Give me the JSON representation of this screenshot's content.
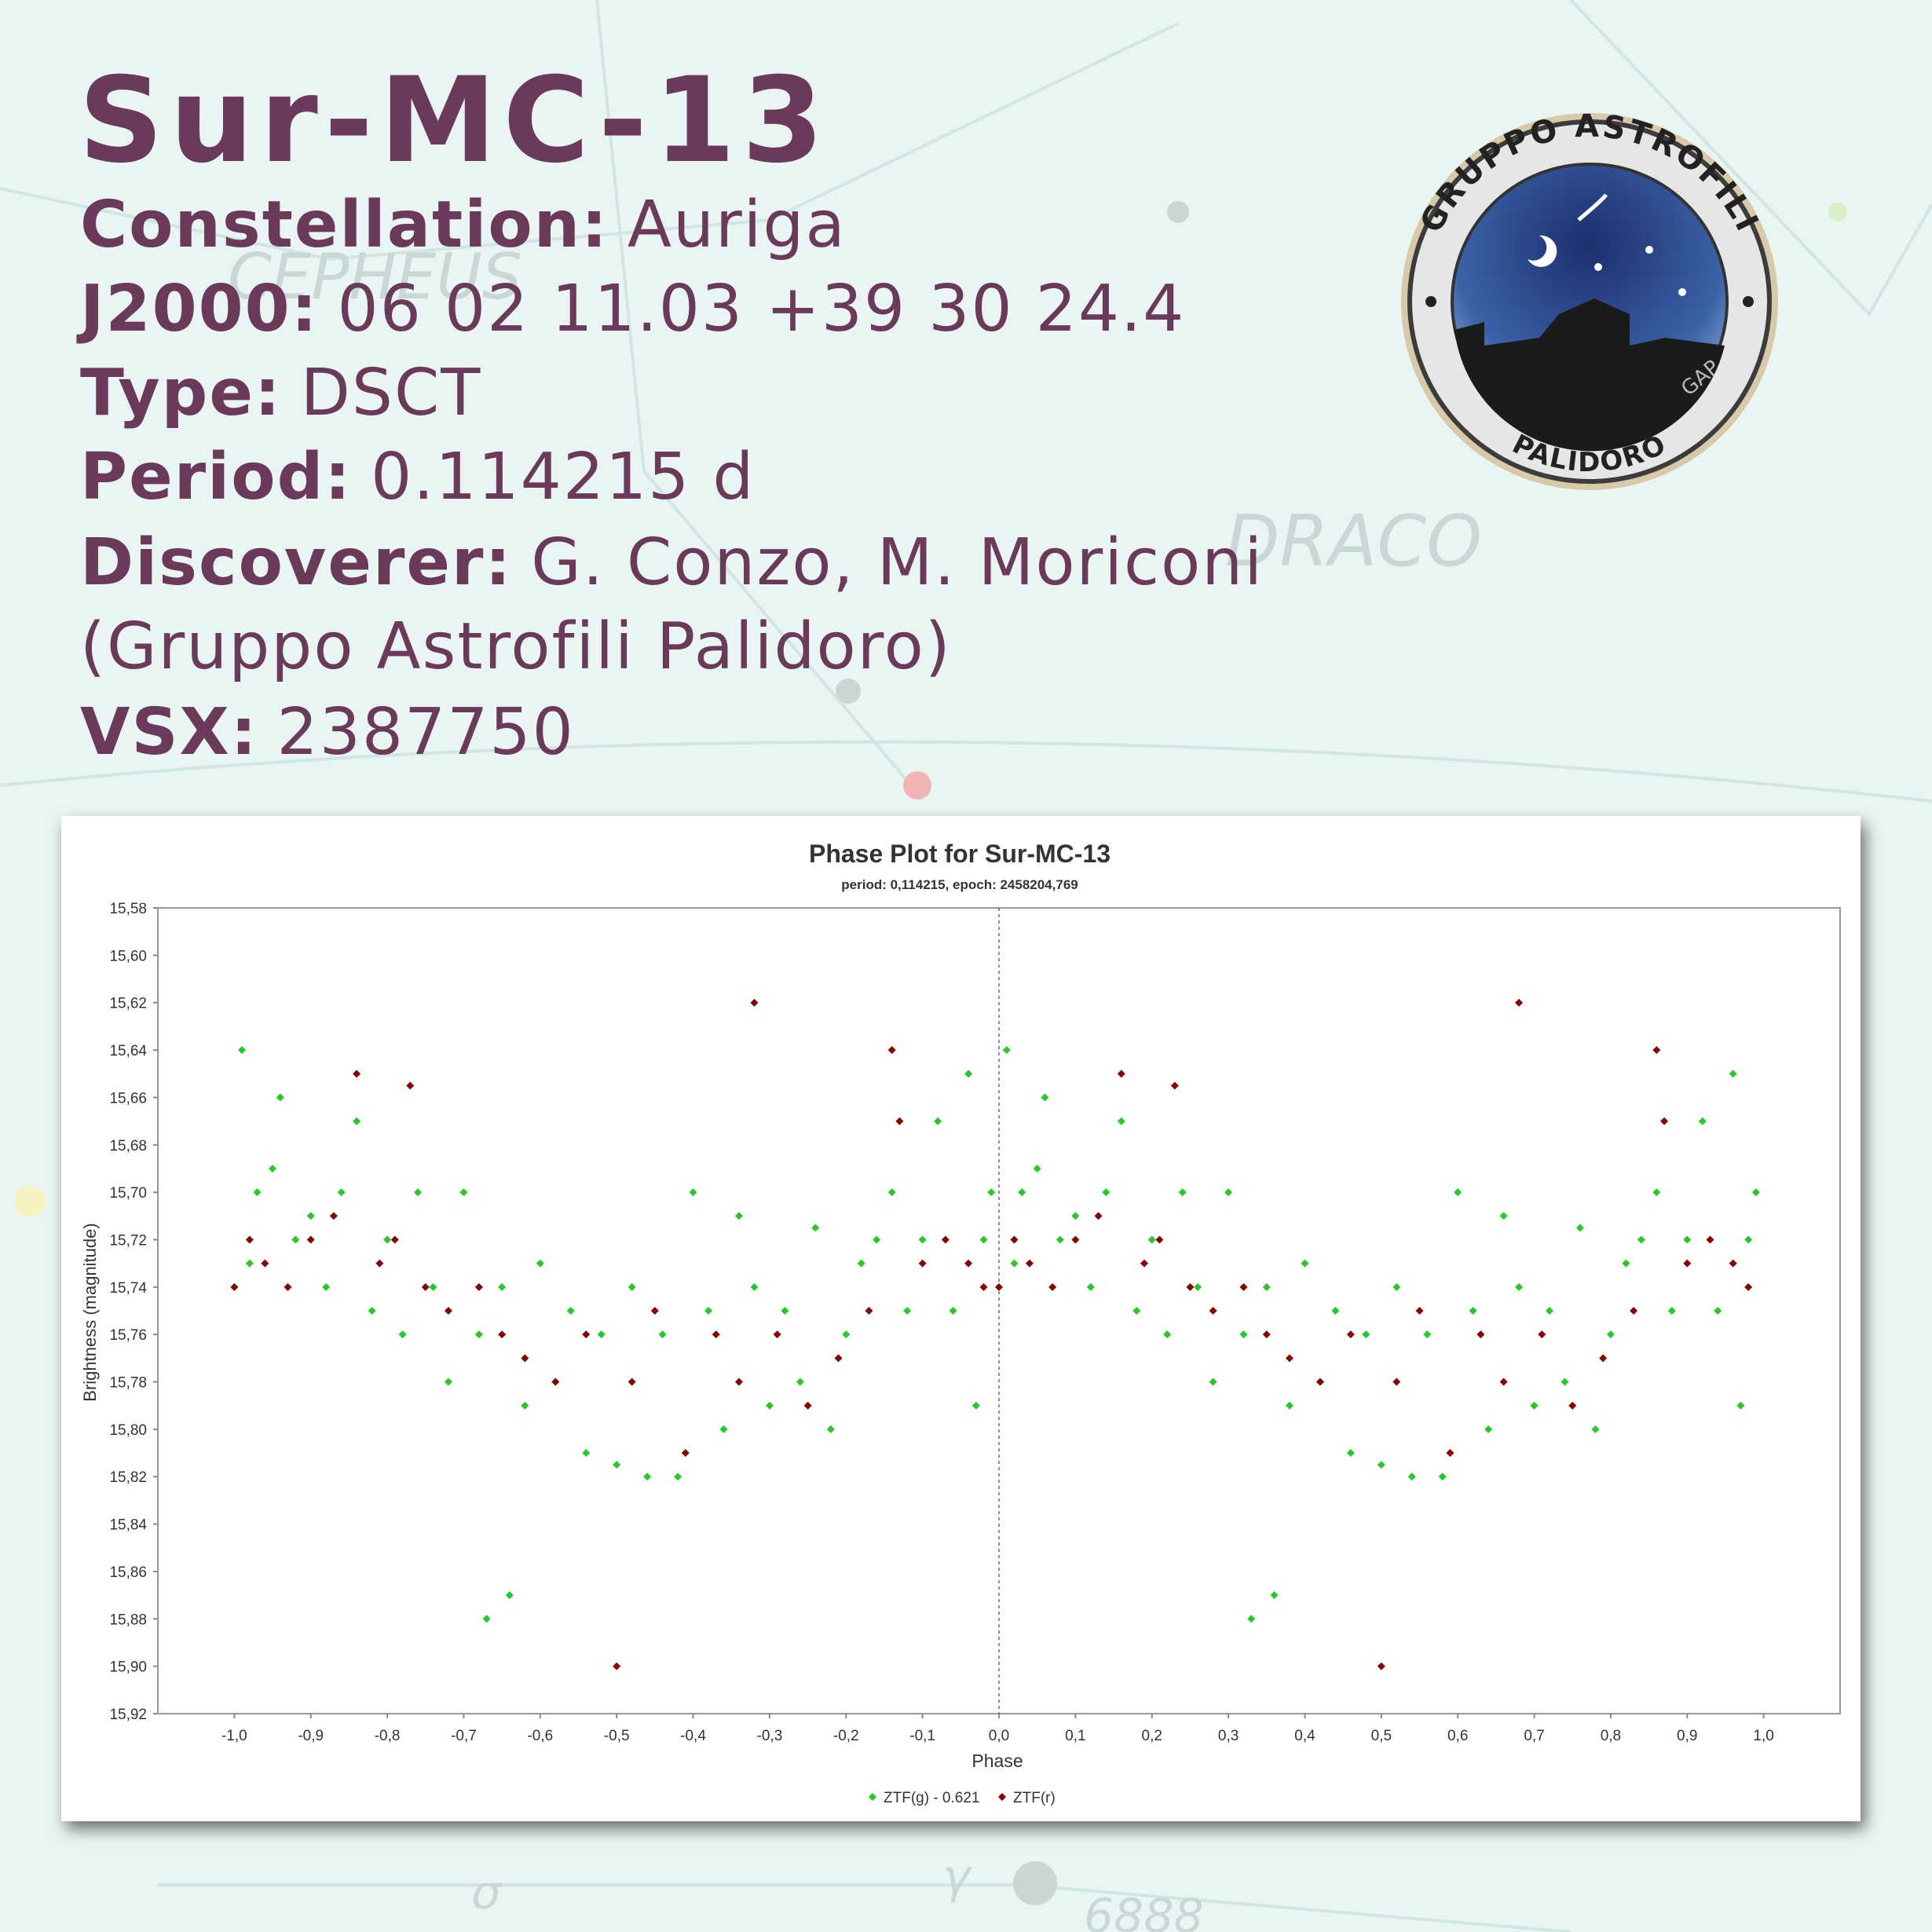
{
  "header": {
    "title": "Sur-MC-13",
    "rows": [
      {
        "label": "Constellation:",
        "value": "Auriga"
      },
      {
        "label": "J2000:",
        "value": "06 02 11.03 +39 30 24.4"
      },
      {
        "label": "Type:",
        "value": "DSCT"
      },
      {
        "label": "Period:",
        "value": "0.114215 d"
      },
      {
        "label": "Discoverer:",
        "value": "G. Conzo, M. Moriconi"
      }
    ],
    "note": "(Gruppo Astrofili Palidoro)",
    "vsx": {
      "label": "VSX:",
      "value": "2387750"
    }
  },
  "logo": {
    "top": "GRUPPO ASTROFILI",
    "bottom": "PALIDORO",
    "side": "GAP"
  },
  "background": {
    "labels": [
      "CEPHEUS",
      "DRACO",
      "6888",
      "γ",
      "σ"
    ]
  },
  "chart_data": {
    "type": "scatter",
    "title": "Phase Plot for Sur-MC-13",
    "subtitle": "period: 0,114215, epoch: 2458204,769",
    "x_label": "Phase",
    "y_label": "Brightness (magnitude)",
    "xlim": [
      -1.1,
      1.1
    ],
    "ylim": [
      15.58,
      15.92
    ],
    "y_inverted": true,
    "vline_x": 0,
    "xticks": [
      {
        "value": -1.0,
        "label": "-1,0"
      },
      {
        "value": -0.9,
        "label": "-0,9"
      },
      {
        "value": -0.8,
        "label": "-0,8"
      },
      {
        "value": -0.7,
        "label": "-0,7"
      },
      {
        "value": -0.6,
        "label": "-0,6"
      },
      {
        "value": -0.5,
        "label": "-0,5"
      },
      {
        "value": -0.4,
        "label": "-0,4"
      },
      {
        "value": -0.3,
        "label": "-0,3"
      },
      {
        "value": -0.2,
        "label": "-0,2"
      },
      {
        "value": -0.1,
        "label": "-0,1"
      },
      {
        "value": 0.0,
        "label": "0,0"
      },
      {
        "value": 0.1,
        "label": "0,1"
      },
      {
        "value": 0.2,
        "label": "0,2"
      },
      {
        "value": 0.3,
        "label": "0,3"
      },
      {
        "value": 0.4,
        "label": "0,4"
      },
      {
        "value": 0.5,
        "label": "0,5"
      },
      {
        "value": 0.6,
        "label": "0,6"
      },
      {
        "value": 0.7,
        "label": "0,7"
      },
      {
        "value": 0.8,
        "label": "0,8"
      },
      {
        "value": 0.9,
        "label": "0,9"
      },
      {
        "value": 1.0,
        "label": "1,0"
      }
    ],
    "yticks": [
      {
        "value": 15.58,
        "label": "15,58"
      },
      {
        "value": 15.6,
        "label": "15,60"
      },
      {
        "value": 15.62,
        "label": "15,62"
      },
      {
        "value": 15.64,
        "label": "15,64"
      },
      {
        "value": 15.66,
        "label": "15,66"
      },
      {
        "value": 15.68,
        "label": "15,68"
      },
      {
        "value": 15.7,
        "label": "15,70"
      },
      {
        "value": 15.72,
        "label": "15,72"
      },
      {
        "value": 15.74,
        "label": "15,74"
      },
      {
        "value": 15.76,
        "label": "15,76"
      },
      {
        "value": 15.78,
        "label": "15,78"
      },
      {
        "value": 15.8,
        "label": "15,80"
      },
      {
        "value": 15.82,
        "label": "15,82"
      },
      {
        "value": 15.84,
        "label": "15,84"
      },
      {
        "value": 15.86,
        "label": "15,86"
      },
      {
        "value": 15.88,
        "label": "15,88"
      },
      {
        "value": 15.9,
        "label": "15,90"
      },
      {
        "value": 15.92,
        "label": "15,92"
      }
    ],
    "series": [
      {
        "name": "ZTF(g) - 0.621",
        "color": "#22cc22",
        "x": [
          0.01,
          0.02,
          0.03,
          0.05,
          0.06,
          0.08,
          0.1,
          0.12,
          0.14,
          0.16,
          0.18,
          0.2,
          0.22,
          0.24,
          0.26,
          0.28,
          0.3,
          0.32,
          0.33,
          0.35,
          0.36,
          0.38,
          0.4,
          0.42,
          0.44,
          0.46,
          0.48,
          0.5,
          0.52,
          0.54,
          0.56,
          0.58,
          0.6,
          0.62,
          0.64,
          0.66,
          0.68,
          0.7,
          0.72,
          0.74,
          0.76,
          0.78,
          0.8,
          0.82,
          0.84,
          0.86,
          0.88,
          0.9,
          0.92,
          0.94,
          0.96,
          0.97,
          0.98,
          0.99,
          -0.99,
          -0.98,
          -0.97,
          -0.95,
          -0.94,
          -0.92,
          -0.9,
          -0.88,
          -0.86,
          -0.84,
          -0.82,
          -0.8,
          -0.78,
          -0.76,
          -0.74,
          -0.72,
          -0.7,
          -0.68,
          -0.67,
          -0.65,
          -0.64,
          -0.62,
          -0.6,
          -0.58,
          -0.56,
          -0.54,
          -0.52,
          -0.5,
          -0.48,
          -0.46,
          -0.44,
          -0.42,
          -0.4,
          -0.38,
          -0.36,
          -0.34,
          -0.32,
          -0.3,
          -0.28,
          -0.26,
          -0.24,
          -0.22,
          -0.2,
          -0.18,
          -0.16,
          -0.14,
          -0.12,
          -0.1,
          -0.08,
          -0.06,
          -0.04,
          -0.03,
          -0.02,
          -0.01
        ],
        "values": [
          15.64,
          15.73,
          15.7,
          15.69,
          15.66,
          15.72,
          15.71,
          15.74,
          15.7,
          15.67,
          15.75,
          15.72,
          15.76,
          15.7,
          15.74,
          15.78,
          15.7,
          15.76,
          15.88,
          15.74,
          15.87,
          15.79,
          15.73,
          15.78,
          15.75,
          15.81,
          15.76,
          15.815,
          15.74,
          15.82,
          15.76,
          15.82,
          15.7,
          15.75,
          15.8,
          15.71,
          15.74,
          15.79,
          15.75,
          15.78,
          15.715,
          15.8,
          15.76,
          15.73,
          15.72,
          15.7,
          15.75,
          15.72,
          15.67,
          15.75,
          15.65,
          15.79,
          15.72,
          15.7,
          15.64,
          15.73,
          15.7,
          15.69,
          15.66,
          15.72,
          15.71,
          15.74,
          15.7,
          15.67,
          15.75,
          15.72,
          15.76,
          15.7,
          15.74,
          15.78,
          15.7,
          15.76,
          15.88,
          15.74,
          15.87,
          15.79,
          15.73,
          15.78,
          15.75,
          15.81,
          15.76,
          15.815,
          15.74,
          15.82,
          15.76,
          15.82,
          15.7,
          15.75,
          15.8,
          15.71,
          15.74,
          15.79,
          15.75,
          15.78,
          15.715,
          15.8,
          15.76,
          15.73,
          15.72,
          15.7,
          15.75,
          15.72,
          15.67,
          15.75,
          15.65,
          15.79,
          15.72,
          15.7
        ]
      },
      {
        "name": "ZTF(r)",
        "color": "#8b0000",
        "x": [
          0,
          0.02,
          0.04,
          0.07,
          0.1,
          0.13,
          0.16,
          0.19,
          0.21,
          0.23,
          0.25,
          0.28,
          0.32,
          0.35,
          0.38,
          0.42,
          0.46,
          0.5,
          0.52,
          0.55,
          0.59,
          0.63,
          0.66,
          0.68,
          0.71,
          0.75,
          0.79,
          0.83,
          0.86,
          0.87,
          0.9,
          0.93,
          0.96,
          0.98,
          -1,
          -0.98,
          -0.96,
          -0.93,
          -0.9,
          -0.87,
          -0.84,
          -0.81,
          -0.79,
          -0.77,
          -0.75,
          -0.72,
          -0.68,
          -0.65,
          -0.62,
          -0.58,
          -0.54,
          -0.5,
          -0.48,
          -0.45,
          -0.41,
          -0.37,
          -0.34,
          -0.32,
          -0.29,
          -0.25,
          -0.21,
          -0.17,
          -0.14,
          -0.13,
          -0.1,
          -0.07,
          -0.04,
          -0.02
        ],
        "values": [
          15.74,
          15.72,
          15.73,
          15.74,
          15.72,
          15.71,
          15.65,
          15.73,
          15.72,
          15.655,
          15.74,
          15.75,
          15.74,
          15.76,
          15.77,
          15.78,
          15.76,
          15.9,
          15.78,
          15.75,
          15.81,
          15.76,
          15.78,
          15.62,
          15.76,
          15.79,
          15.77,
          15.75,
          15.64,
          15.67,
          15.73,
          15.72,
          15.73,
          15.74,
          15.74,
          15.72,
          15.73,
          15.74,
          15.72,
          15.71,
          15.65,
          15.73,
          15.72,
          15.655,
          15.74,
          15.75,
          15.74,
          15.76,
          15.77,
          15.78,
          15.76,
          15.9,
          15.78,
          15.75,
          15.81,
          15.76,
          15.78,
          15.62,
          15.76,
          15.79,
          15.77,
          15.75,
          15.64,
          15.67,
          15.73,
          15.72,
          15.73,
          15.74
        ]
      }
    ]
  }
}
